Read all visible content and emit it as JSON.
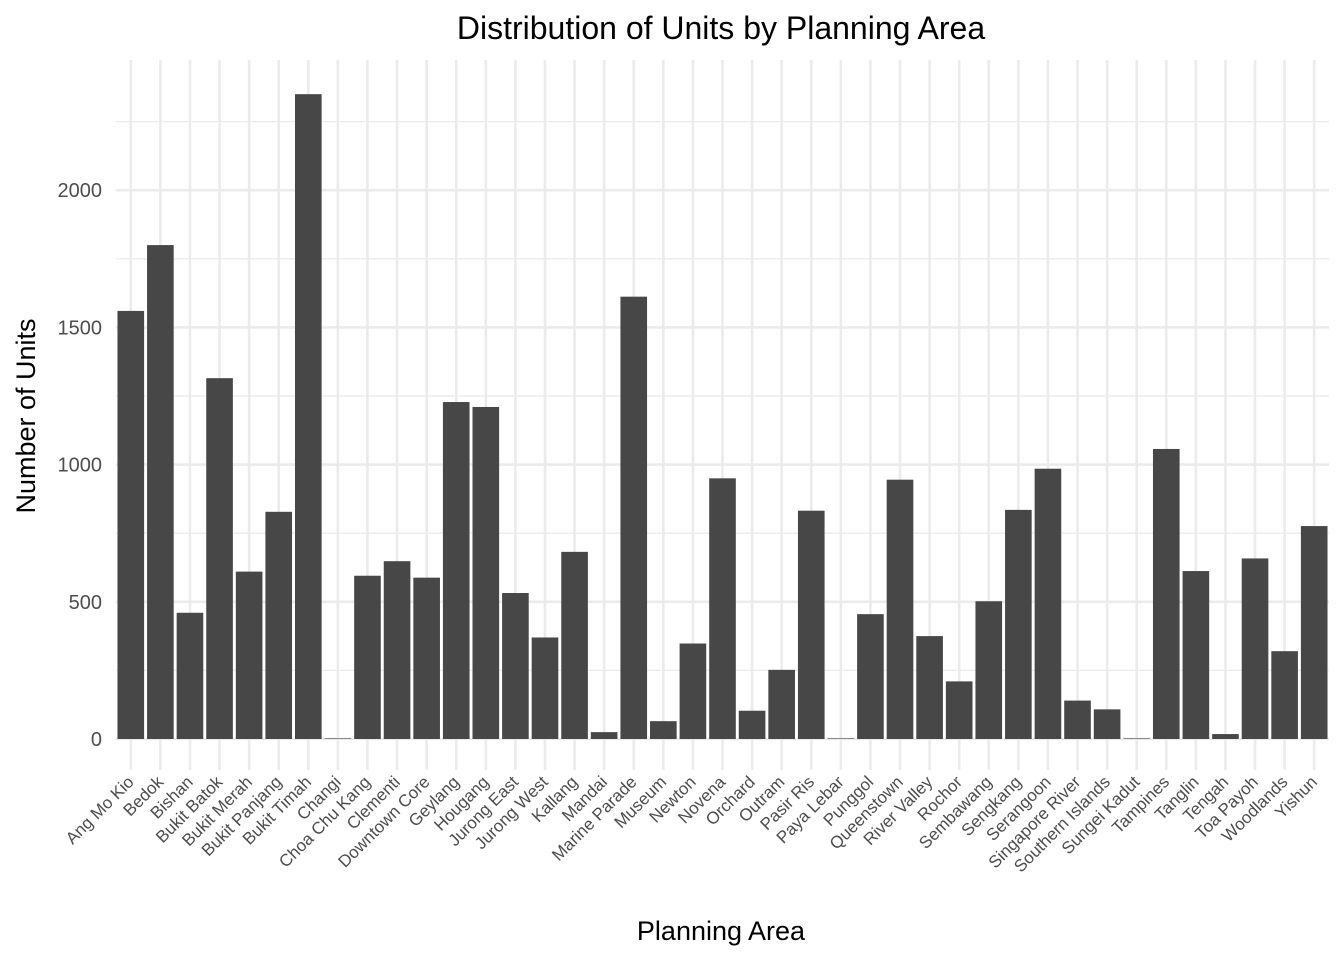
{
  "chart_data": {
    "type": "bar",
    "title": "Distribution of Units by Planning Area",
    "xlabel": "Planning Area",
    "ylabel": "Number of Units",
    "ylim": [
      0,
      2450
    ],
    "yticks": [
      "0",
      "500",
      "1000",
      "1500",
      "2000"
    ],
    "grid": true,
    "bar_color": "#474747",
    "grid_color": "#ebebeb",
    "categories": [
      "Ang Mo Kio",
      "Bedok",
      "Bishan",
      "Bukit Batok",
      "Bukit Merah",
      "Bukit Panjang",
      "Bukit Timah",
      "Changi",
      "Choa Chu Kang",
      "Clementi",
      "Downtown Core",
      "Geylang",
      "Hougang",
      "Jurong East",
      "Jurong West",
      "Kallang",
      "Mandai",
      "Marine Parade",
      "Museum",
      "Newton",
      "Novena",
      "Orchard",
      "Outram",
      "Pasir Ris",
      "Paya Lebar",
      "Punggol",
      "Queenstown",
      "River Valley",
      "Rochor",
      "Sembawang",
      "Sengkang",
      "Serangoon",
      "Singapore River",
      "Southern Islands",
      "Sungei Kadut",
      "Tampines",
      "Tanglin",
      "Tengah",
      "Toa Payoh",
      "Woodlands",
      "Yishun"
    ],
    "values": [
      1560,
      1800,
      460,
      1315,
      610,
      828,
      2350,
      2,
      595,
      648,
      588,
      1228,
      1210,
      532,
      370,
      682,
      25,
      1612,
      65,
      348,
      950,
      103,
      252,
      832,
      2,
      455,
      945,
      375,
      210,
      502,
      835,
      985,
      140,
      108,
      2,
      1057,
      612,
      18,
      658,
      320,
      776
    ]
  }
}
